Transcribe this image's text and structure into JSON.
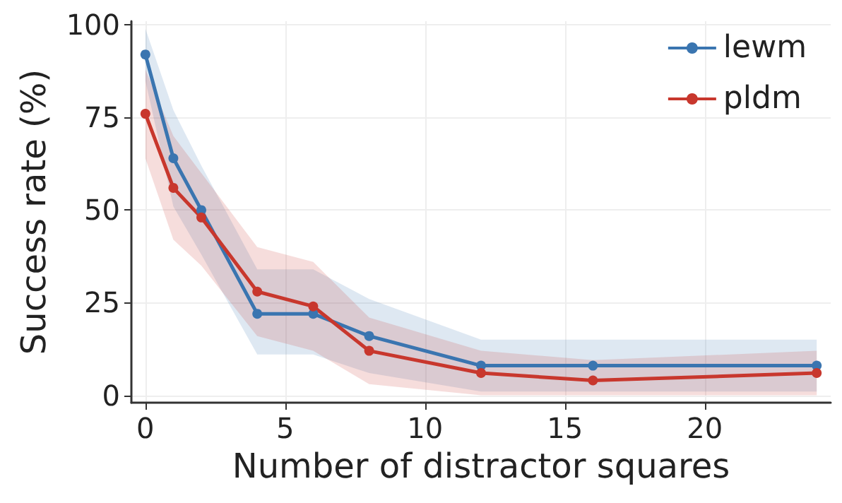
{
  "chart_data": {
    "type": "line",
    "xlabel": "Number of distractor squares",
    "ylabel": "Success rate (%)",
    "x": [
      0,
      1,
      2,
      4,
      6,
      8,
      12,
      16,
      24
    ],
    "series": [
      {
        "name": "lewm",
        "color": "#3a75b0",
        "values": [
          92,
          64,
          50,
          22,
          22,
          16,
          8,
          8,
          8
        ],
        "lower": [
          85,
          51,
          38,
          11,
          11,
          6,
          1,
          1,
          1
        ],
        "upper": [
          99,
          77,
          62,
          34,
          34,
          26,
          15,
          15,
          15
        ]
      },
      {
        "name": "pldm",
        "color": "#c8372d",
        "values": [
          76,
          56,
          48,
          28,
          24,
          12,
          6,
          4,
          6
        ],
        "lower": [
          64,
          42,
          35,
          16,
          12,
          3,
          0,
          0,
          0
        ],
        "upper": [
          88,
          70,
          60,
          40,
          36,
          21,
          12,
          9.5,
          12
        ]
      }
    ],
    "xlim": [
      -0.5,
      24.5
    ],
    "ylim": [
      -2,
      101
    ],
    "xticks": [
      0,
      5,
      10,
      15,
      20
    ],
    "yticks": [
      0,
      25,
      50,
      75,
      100
    ],
    "grid": true,
    "legend": "top right",
    "marker": "circle",
    "line_style": "solid"
  }
}
